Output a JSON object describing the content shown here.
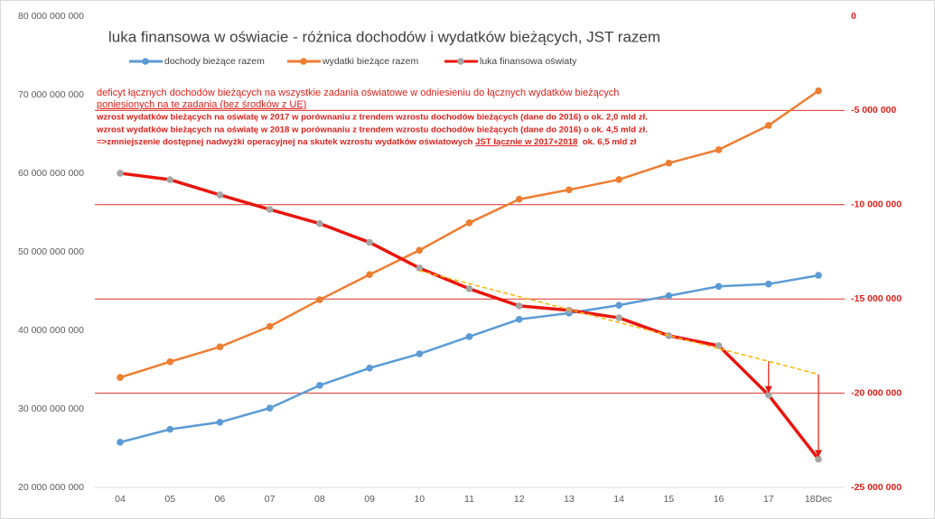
{
  "chart_data": {
    "type": "line",
    "title": "luka finansowa w oświacie - różnica dochodów i wydatków bieżących,  JST razem",
    "annotations": [
      "deficyt łącznych dochodów bieżących na wszystkie zadania oświatowe w odniesieniu do łącznych wydatków bieżących",
      "poniesionych na te zadania (bez środków z UE)",
      "wzrost wydatków bieżących na oświatę w 2017 w porównaniu z trendem wzrostu dochodów bieżących (dane do 2016) o ok. 2,0 mld zł.",
      "wzrost wydatków bieżących na oświatę w 2018 w porównaniu z trendem wzrostu dochodów bieżących (dane do 2016) o ok. 4,5 mld zł.",
      "=>zmniejszenie dostępnej nadwyżki operacyjnej na skutek wzrostu wydatków oświatowych ",
      "JST łącznie w 2017+2018",
      "  ok. 6,5 mld zł"
    ],
    "categories": [
      "04",
      "05",
      "06",
      "07",
      "08",
      "09",
      "10",
      "11",
      "12",
      "13",
      "14",
      "15",
      "16",
      "17",
      "18Dec"
    ],
    "series": [
      {
        "name": "dochody bieżące razem",
        "color": "#5b9bd5",
        "marker": "#5b9bd5",
        "values": [
          25750000000,
          27400000000,
          28300000000,
          30100000000,
          33000000000,
          35200000000,
          37000000000,
          39200000000,
          41400000000,
          42200000000,
          43200000000,
          44400000000,
          45600000000,
          45900000000,
          47000000000
        ]
      },
      {
        "name": "wydatki bieżące razem",
        "color": "#ed7d31",
        "marker": "#ed7d31",
        "values": [
          34000000000,
          36000000000,
          37900000000,
          40500000000,
          43900000000,
          47100000000,
          50200000000,
          53700000000,
          56700000000,
          57900000000,
          59200000000,
          61300000000,
          63000000000,
          66100000000,
          70500000000
        ]
      },
      {
        "name": "luka finansowa oświaty",
        "color": "#e8160c",
        "marker": "#a5a5a5",
        "axis": "y2",
        "values": [
          -8330000,
          -8670000,
          -9480000,
          -10250000,
          -11000000,
          -12000000,
          -13360000,
          -14460000,
          -15370000,
          -15600000,
          -16000000,
          -16950000,
          -17480000,
          -20100000,
          -23500000
        ]
      }
    ],
    "trend": {
      "color": "#f5b800",
      "axis": "y2",
      "values": [
        null,
        null,
        null,
        null,
        null,
        null,
        -13500000,
        -14190000,
        -14880000,
        -15560000,
        -16250000,
        -16940000,
        -17630000,
        -18310000,
        -19000000
      ]
    },
    "ylim": [
      20000000000,
      80000000000
    ],
    "yticks": [
      {
        "value": 20000000000,
        "label": "20 000 000 000"
      },
      {
        "value": 30000000000,
        "label": "30 000 000 000"
      },
      {
        "value": 40000000000,
        "label": "40 000 000 000"
      },
      {
        "value": 50000000000,
        "label": "50 000 000 000"
      },
      {
        "value": 60000000000,
        "label": "60 000 000 000"
      },
      {
        "value": 70000000000,
        "label": "70 000 000 000"
      },
      {
        "value": 80000000000,
        "label": "80 000 000 000"
      }
    ],
    "y2lim": [
      -25000000,
      0
    ],
    "y2ticks": [
      0,
      {
        "value": -5000000,
        "label": "-5 000 000"
      },
      {
        "value": -10000000,
        "label": "-10 000 000"
      },
      {
        "value": -15000000,
        "label": "-15 000 000"
      },
      {
        "value": -20000000,
        "label": "-20 000 000"
      },
      {
        "value": -25000000,
        "label": "-25 000 000"
      }
    ],
    "y2grid": true,
    "y2grid_color": "#d9342b",
    "y2label_color": "#e0201b"
  }
}
